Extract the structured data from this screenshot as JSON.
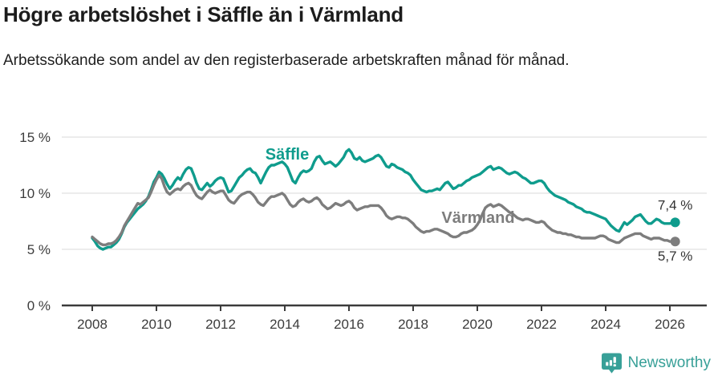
{
  "chart_data": {
    "type": "line",
    "title": "Högre arbetslöshet i Säffle än i Värmland",
    "subtitle": "Arbetssökande som andel av den registerbaserade arbetskraften månad för månad.",
    "unit": "%",
    "grid": "horizontal",
    "legend_position": "inline-labels",
    "ylim": [
      0,
      15
    ],
    "y_ticks": [
      {
        "value": 0,
        "label": "0 %"
      },
      {
        "value": 5,
        "label": "5 %"
      },
      {
        "value": 10,
        "label": "10 %"
      },
      {
        "value": 15,
        "label": "15 %"
      }
    ],
    "x_ticks": [
      {
        "year": 2008,
        "label": "2008"
      },
      {
        "year": 2010,
        "label": "2010"
      },
      {
        "year": 2012,
        "label": "2012"
      },
      {
        "year": 2014,
        "label": "2014"
      },
      {
        "year": 2016,
        "label": "2016"
      },
      {
        "year": 2018,
        "label": "2018"
      },
      {
        "year": 2020,
        "label": "2020"
      },
      {
        "year": 2022,
        "label": "2022"
      },
      {
        "year": 2024,
        "label": "2024"
      },
      {
        "year": 2026,
        "label": "2026"
      }
    ],
    "x_start_year": 2008,
    "points_per_year": 12,
    "series": [
      {
        "name": "Säffle",
        "color": "#0f9c8d",
        "end_label": "7,4 %",
        "values": [
          6.0,
          5.7,
          5.3,
          5.1,
          5.0,
          5.1,
          5.2,
          5.2,
          5.4,
          5.6,
          5.9,
          6.4,
          7.0,
          7.4,
          7.7,
          8.0,
          8.3,
          8.6,
          8.8,
          9.0,
          9.3,
          9.7,
          10.3,
          11.0,
          11.4,
          11.9,
          11.7,
          11.3,
          10.8,
          10.4,
          10.7,
          11.1,
          11.4,
          11.2,
          11.7,
          12.1,
          12.3,
          12.2,
          11.6,
          10.9,
          10.4,
          10.3,
          10.6,
          10.9,
          10.6,
          10.8,
          11.1,
          11.3,
          11.4,
          11.3,
          10.7,
          10.1,
          10.2,
          10.6,
          11.0,
          11.4,
          11.6,
          11.9,
          12.1,
          12.2,
          11.9,
          11.8,
          11.4,
          10.9,
          11.4,
          11.9,
          12.3,
          12.5,
          12.5,
          12.6,
          12.7,
          12.8,
          12.6,
          12.3,
          11.7,
          11.1,
          10.9,
          11.4,
          11.8,
          12.0,
          11.9,
          12.0,
          12.2,
          12.8,
          13.2,
          13.3,
          12.9,
          12.6,
          12.7,
          12.8,
          12.6,
          12.4,
          12.6,
          12.9,
          13.2,
          13.7,
          13.9,
          13.6,
          13.1,
          13.0,
          13.2,
          12.9,
          12.8,
          12.9,
          13.0,
          13.1,
          13.3,
          13.4,
          13.2,
          12.8,
          12.4,
          12.3,
          12.6,
          12.5,
          12.3,
          12.2,
          12.1,
          11.9,
          11.8,
          11.6,
          11.2,
          10.9,
          10.6,
          10.3,
          10.2,
          10.1,
          10.2,
          10.2,
          10.3,
          10.4,
          10.3,
          10.6,
          10.9,
          11.0,
          10.7,
          10.4,
          10.5,
          10.7,
          10.7,
          10.9,
          11.1,
          11.2,
          11.4,
          11.5,
          11.6,
          11.7,
          11.9,
          12.1,
          12.3,
          12.4,
          12.1,
          12.2,
          12.3,
          12.2,
          12.0,
          11.8,
          11.7,
          11.8,
          11.9,
          11.8,
          11.6,
          11.4,
          11.3,
          11.1,
          10.9,
          10.9,
          11.0,
          11.1,
          11.1,
          10.9,
          10.5,
          10.2,
          10.0,
          9.8,
          9.7,
          9.6,
          9.5,
          9.4,
          9.2,
          9.1,
          9.0,
          8.8,
          8.7,
          8.6,
          8.4,
          8.3,
          8.3,
          8.2,
          8.1,
          8.0,
          7.9,
          7.8,
          7.7,
          7.4,
          7.1,
          6.9,
          6.7,
          6.6,
          7.0,
          7.4,
          7.2,
          7.4,
          7.6,
          7.9,
          8.0,
          8.1,
          7.8,
          7.5,
          7.3,
          7.3,
          7.5,
          7.7,
          7.6,
          7.4,
          7.3,
          7.3,
          7.3,
          7.4,
          7.4
        ]
      },
      {
        "name": "Värmland",
        "color": "#7d7d7d",
        "end_label": "5,7 %",
        "values": [
          6.1,
          5.9,
          5.7,
          5.5,
          5.4,
          5.4,
          5.5,
          5.5,
          5.6,
          5.8,
          6.1,
          6.5,
          7.1,
          7.5,
          7.9,
          8.3,
          8.7,
          9.1,
          9.0,
          9.2,
          9.4,
          9.6,
          10.1,
          10.7,
          11.2,
          11.6,
          11.3,
          10.6,
          10.1,
          9.9,
          10.1,
          10.3,
          10.4,
          10.3,
          10.6,
          10.8,
          10.9,
          10.7,
          10.2,
          9.8,
          9.6,
          9.5,
          9.8,
          10.1,
          10.3,
          10.1,
          10.0,
          10.1,
          10.2,
          10.2,
          9.8,
          9.4,
          9.2,
          9.1,
          9.4,
          9.7,
          9.9,
          10.0,
          10.1,
          10.1,
          9.9,
          9.6,
          9.2,
          9.0,
          8.9,
          9.2,
          9.5,
          9.7,
          9.7,
          9.8,
          9.9,
          10.0,
          9.8,
          9.4,
          9.0,
          8.8,
          8.9,
          9.2,
          9.4,
          9.5,
          9.3,
          9.2,
          9.3,
          9.5,
          9.6,
          9.4,
          9.0,
          8.8,
          8.6,
          8.7,
          8.9,
          9.1,
          9.0,
          8.9,
          9.0,
          9.2,
          9.3,
          9.1,
          8.7,
          8.5,
          8.6,
          8.7,
          8.8,
          8.8,
          8.9,
          8.9,
          8.9,
          8.9,
          8.7,
          8.4,
          8.0,
          7.8,
          7.7,
          7.8,
          7.9,
          7.9,
          7.8,
          7.8,
          7.7,
          7.5,
          7.3,
          7.0,
          6.8,
          6.6,
          6.5,
          6.6,
          6.6,
          6.7,
          6.8,
          6.8,
          6.7,
          6.6,
          6.5,
          6.4,
          6.2,
          6.1,
          6.1,
          6.2,
          6.4,
          6.5,
          6.5,
          6.6,
          6.7,
          6.9,
          7.2,
          7.6,
          8.2,
          8.7,
          8.9,
          9.0,
          8.8,
          8.9,
          9.0,
          8.9,
          8.7,
          8.5,
          8.3,
          8.2,
          8.0,
          7.8,
          7.7,
          7.6,
          7.7,
          7.7,
          7.6,
          7.5,
          7.4,
          7.4,
          7.5,
          7.4,
          7.1,
          6.9,
          6.7,
          6.6,
          6.5,
          6.5,
          6.4,
          6.4,
          6.3,
          6.3,
          6.2,
          6.1,
          6.1,
          6.0,
          6.0,
          6.0,
          6.0,
          6.0,
          6.0,
          6.1,
          6.2,
          6.2,
          6.1,
          5.9,
          5.8,
          5.7,
          5.6,
          5.6,
          5.8,
          6.0,
          6.1,
          6.2,
          6.3,
          6.4,
          6.4,
          6.4,
          6.2,
          6.1,
          6.0,
          5.9,
          6.0,
          6.0,
          6.0,
          5.9,
          5.8,
          5.8,
          5.7,
          5.7,
          5.7
        ]
      }
    ],
    "colors": {
      "saffle": "#0f9c8d",
      "varmland": "#7d7d7d",
      "gridline": "#e0e0e0",
      "axis": "#3b3b3b",
      "tick_text": "#3c3c3c",
      "end_label_text": "#333333"
    }
  },
  "footer": {
    "brand": "Newsworthy",
    "brand_color": "#38a098"
  }
}
